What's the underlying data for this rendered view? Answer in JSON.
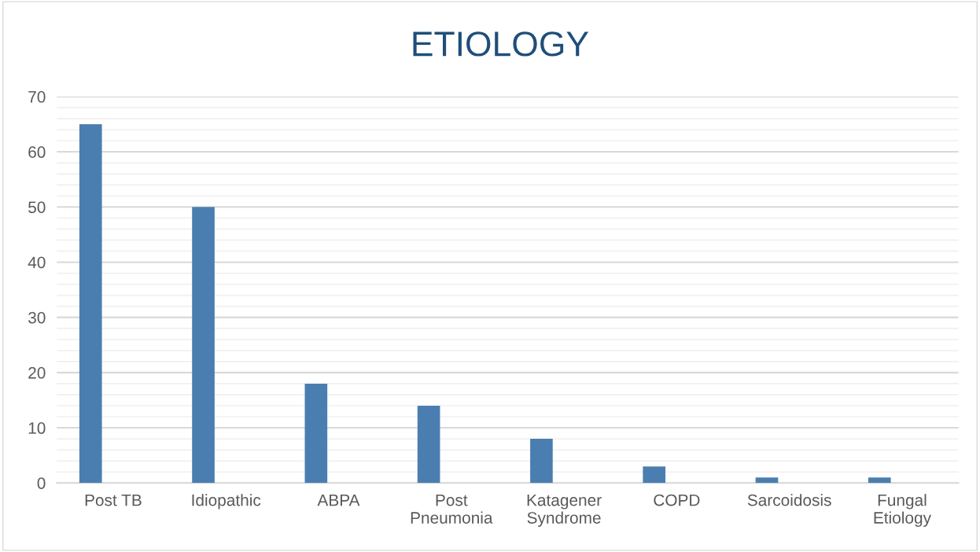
{
  "chart_data": {
    "type": "bar",
    "title": "ETIOLOGY",
    "categories": [
      "Post TB",
      "Idiopathic",
      "ABPA",
      "Post\nPneumonia",
      "Katagener\nSyndrome",
      "COPD",
      "Sarcoidosis",
      "Fungal\nEtiology"
    ],
    "values": [
      65,
      50,
      18,
      14,
      8,
      3,
      1,
      1
    ],
    "color": "#4a7eb0",
    "ylim": [
      0,
      70
    ],
    "yticks": [
      0,
      {
        "value": 2,
        "label": null
      },
      {
        "value": 4,
        "label": null
      },
      {
        "value": 6,
        "label": null
      },
      {
        "value": 8,
        "label": null
      },
      10,
      {
        "value": 12,
        "label": null
      },
      {
        "value": 14,
        "label": null
      },
      {
        "value": 16,
        "label": null
      },
      {
        "value": 18,
        "label": null
      },
      20,
      {
        "value": 22,
        "label": null
      },
      {
        "value": 24,
        "label": null
      },
      {
        "value": 26,
        "label": null
      },
      {
        "value": 28,
        "label": null
      },
      30,
      {
        "value": 32,
        "label": null
      },
      {
        "value": 34,
        "label": null
      },
      {
        "value": 36,
        "label": null
      },
      {
        "value": 38,
        "label": null
      },
      40,
      {
        "value": 42,
        "label": null
      },
      {
        "value": 44,
        "label": null
      },
      {
        "value": 46,
        "label": null
      },
      {
        "value": 48,
        "label": null
      },
      50,
      {
        "value": 52,
        "label": null
      },
      {
        "value": 54,
        "label": null
      },
      {
        "value": 56,
        "label": null
      },
      {
        "value": 58,
        "label": null
      },
      60,
      {
        "value": 62,
        "label": null
      },
      {
        "value": 64,
        "label": null
      },
      {
        "value": 66,
        "label": null
      },
      {
        "value": 68,
        "label": null
      },
      70
    ],
    "grid": "y"
  }
}
